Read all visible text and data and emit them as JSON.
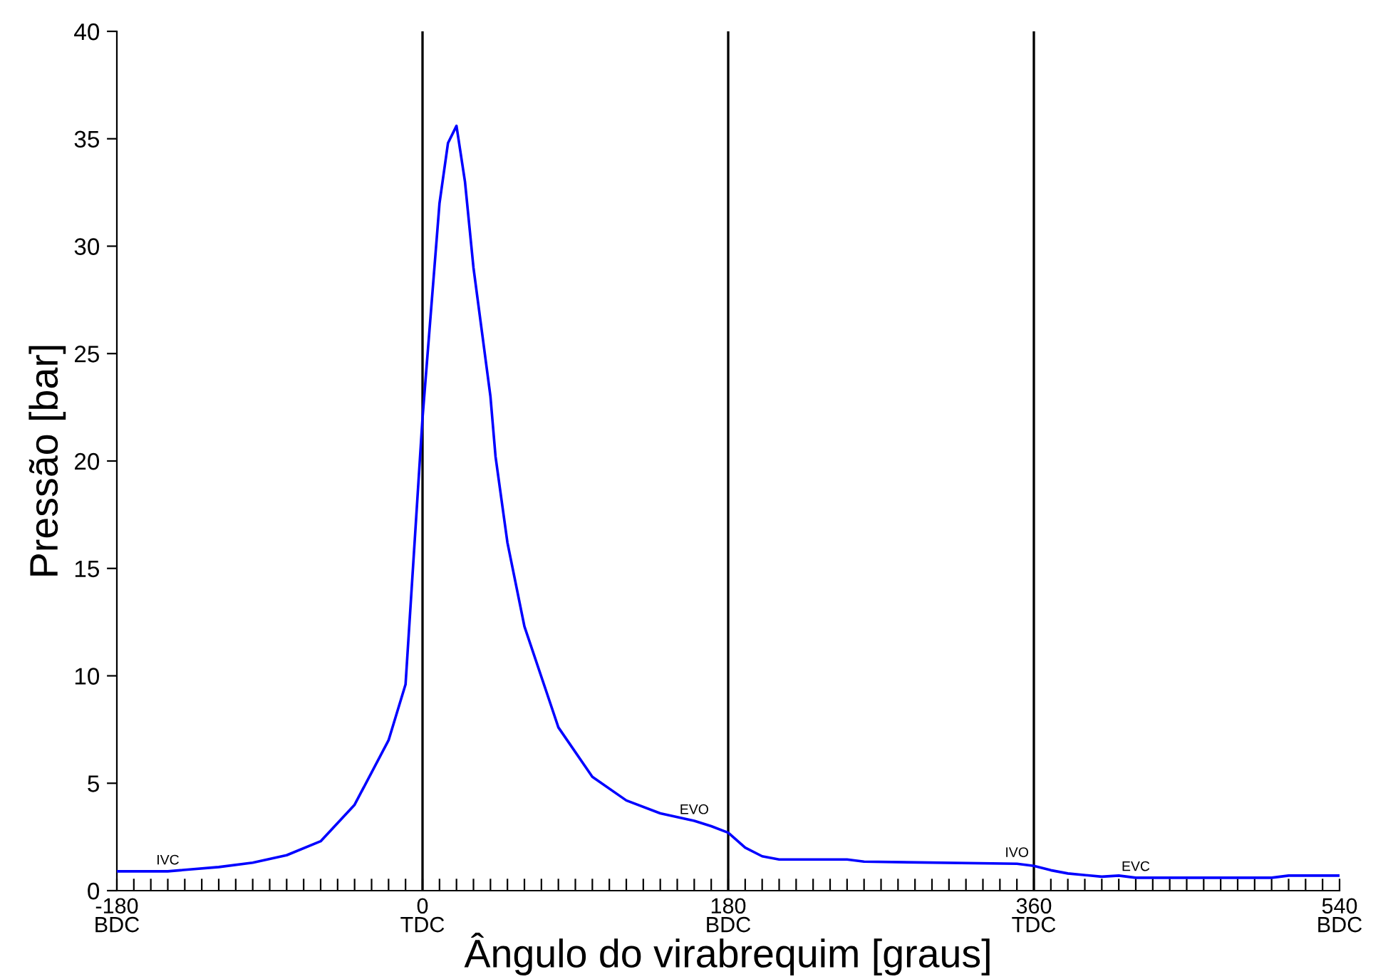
{
  "chart_data": {
    "type": "line",
    "xlabel": "Ângulo do virabrequim [graus]",
    "ylabel": "Pressão [bar]",
    "xlim": [
      -180,
      540
    ],
    "ylim": [
      0,
      40
    ],
    "xticks": [
      {
        "value": -180,
        "label": "-180\nBDC"
      },
      {
        "value": -170,
        "label": null
      },
      {
        "value": -160,
        "label": null
      },
      {
        "value": -150,
        "label": null
      },
      {
        "value": -140,
        "label": null
      },
      {
        "value": -130,
        "label": null
      },
      {
        "value": -120,
        "label": null
      },
      {
        "value": -110,
        "label": null
      },
      {
        "value": -100,
        "label": null
      },
      {
        "value": -90,
        "label": null
      },
      {
        "value": -80,
        "label": null
      },
      {
        "value": -70,
        "label": null
      },
      {
        "value": -60,
        "label": null
      },
      {
        "value": -50,
        "label": null
      },
      {
        "value": -40,
        "label": null
      },
      {
        "value": -30,
        "label": null
      },
      {
        "value": -20,
        "label": null
      },
      {
        "value": -10,
        "label": null
      },
      {
        "value": 0,
        "label": "0\nTDC"
      },
      {
        "value": 10,
        "label": null
      },
      {
        "value": 20,
        "label": null
      },
      {
        "value": 30,
        "label": null
      },
      {
        "value": 40,
        "label": null
      },
      {
        "value": 50,
        "label": null
      },
      {
        "value": 60,
        "label": null
      },
      {
        "value": 70,
        "label": null
      },
      {
        "value": 80,
        "label": null
      },
      {
        "value": 90,
        "label": null
      },
      {
        "value": 100,
        "label": null
      },
      {
        "value": 110,
        "label": null
      },
      {
        "value": 120,
        "label": null
      },
      {
        "value": 130,
        "label": null
      },
      {
        "value": 140,
        "label": null
      },
      {
        "value": 150,
        "label": null
      },
      {
        "value": 160,
        "label": null
      },
      {
        "value": 170,
        "label": null
      },
      {
        "value": 180,
        "label": "180\nBDC"
      },
      {
        "value": 190,
        "label": null
      },
      {
        "value": 200,
        "label": null
      },
      {
        "value": 210,
        "label": null
      },
      {
        "value": 220,
        "label": null
      },
      {
        "value": 230,
        "label": null
      },
      {
        "value": 240,
        "label": null
      },
      {
        "value": 250,
        "label": null
      },
      {
        "value": 260,
        "label": null
      },
      {
        "value": 270,
        "label": null
      },
      {
        "value": 280,
        "label": null
      },
      {
        "value": 290,
        "label": null
      },
      {
        "value": 300,
        "label": null
      },
      {
        "value": 310,
        "label": null
      },
      {
        "value": 320,
        "label": null
      },
      {
        "value": 330,
        "label": null
      },
      {
        "value": 340,
        "label": null
      },
      {
        "value": 350,
        "label": null
      },
      {
        "value": 360,
        "label": "360\nTDC"
      },
      {
        "value": 370,
        "label": null
      },
      {
        "value": 380,
        "label": null
      },
      {
        "value": 390,
        "label": null
      },
      {
        "value": 400,
        "label": null
      },
      {
        "value": 410,
        "label": null
      },
      {
        "value": 420,
        "label": null
      },
      {
        "value": 430,
        "label": null
      },
      {
        "value": 440,
        "label": null
      },
      {
        "value": 450,
        "label": null
      },
      {
        "value": 460,
        "label": null
      },
      {
        "value": 470,
        "label": null
      },
      {
        "value": 480,
        "label": null
      },
      {
        "value": 490,
        "label": null
      },
      {
        "value": 500,
        "label": null
      },
      {
        "value": 510,
        "label": null
      },
      {
        "value": 520,
        "label": null
      },
      {
        "value": 530,
        "label": null
      },
      {
        "value": 540,
        "label": "540\nBDC"
      }
    ],
    "yticks": [
      0,
      5,
      10,
      15,
      20,
      25,
      30,
      35,
      40
    ],
    "grid": false,
    "marker": "none",
    "line_style": "solid",
    "series": [
      {
        "color": "#0000ff",
        "x": [
          -180,
          -150,
          -120,
          -100,
          -80,
          -60,
          -40,
          -20,
          -10,
          0,
          5,
          10,
          15,
          20,
          25,
          30,
          35,
          40,
          43,
          50,
          60,
          80,
          100,
          120,
          140,
          160,
          170,
          180,
          190,
          200,
          210,
          250,
          260,
          350,
          360,
          370,
          380,
          400,
          410,
          420,
          500,
          510,
          540
        ],
        "values": [
          0.9,
          0.9,
          1.1,
          1.3,
          1.65,
          2.3,
          4.0,
          7.0,
          9.6,
          22,
          27,
          32,
          34.8,
          35.6,
          33,
          29,
          26,
          23,
          20.2,
          16.2,
          12.3,
          7.6,
          5.3,
          4.2,
          3.6,
          3.25,
          3.0,
          2.7,
          2.0,
          1.6,
          1.45,
          1.45,
          1.35,
          1.25,
          1.15,
          0.95,
          0.8,
          0.65,
          0.7,
          0.6,
          0.6,
          0.7,
          0.7
        ]
      }
    ],
    "ref_lines": [
      {
        "axis": "x",
        "value": 0,
        "color": "#000000"
      },
      {
        "axis": "x",
        "value": 180,
        "color": "#000000"
      },
      {
        "axis": "x",
        "value": 360,
        "color": "#000000"
      }
    ],
    "annotations": [
      {
        "text": "IVC",
        "x": -150,
        "y": 0.9
      },
      {
        "text": "EVO",
        "x": 160,
        "y": 3.25
      },
      {
        "text": "IVO",
        "x": 350,
        "y": 1.25
      },
      {
        "text": "EVC",
        "x": 420,
        "y": 0.6
      }
    ]
  }
}
